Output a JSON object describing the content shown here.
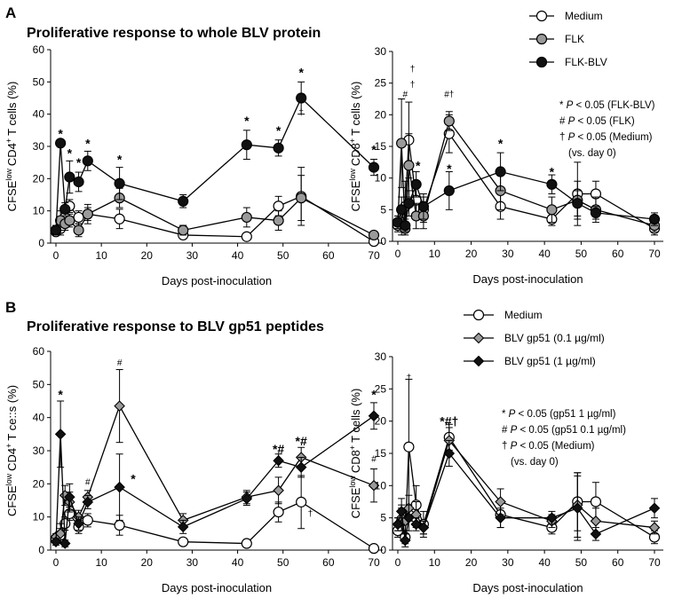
{
  "panels": [
    {
      "letter": "A",
      "title": "Proliferative response to whole BLV protein"
    },
    {
      "letter": "B",
      "title": "Proliferative response to BLV gp51 peptides"
    }
  ],
  "legends": [
    {
      "items": [
        "Medium",
        "FLK",
        "FLK-BLV"
      ],
      "notes": [
        "* P < 0.05 (FLK-BLV)",
        "# P < 0.05 (FLK)",
        "† P < 0.05 (Medium)",
        "(vs. day 0)"
      ]
    },
    {
      "items": [
        "Medium",
        "BLV gp51 (0.1 µg/ml)",
        "BLV gp51 (1 µg/ml)"
      ],
      "notes": [
        "* P < 0.05 (gp51 1 µg/ml)",
        "# P < 0.05 (gp51 0.1 µg/ml)",
        "† P < 0.05 (Medium)",
        "(vs. day 0)"
      ]
    }
  ],
  "chart_data": [
    {
      "type": "line",
      "id": "A-CD4",
      "xlabel": "Days post-inoculation",
      "ylabel": "CFSE low CD4+ T cells (%)",
      "xlim": [
        0,
        70
      ],
      "ylim": [
        0,
        60
      ],
      "xticks": [
        0,
        10,
        20,
        30,
        40,
        50,
        60,
        70
      ],
      "yticks": [
        0,
        10,
        20,
        30,
        40,
        50,
        60
      ],
      "x": [
        0,
        1,
        2,
        3,
        5,
        7,
        14,
        28,
        42,
        49,
        54,
        70
      ],
      "series": [
        {
          "name": "Medium",
          "marker": "circle-open",
          "values": [
            3.5,
            4.5,
            8,
            11.5,
            8,
            9,
            7.5,
            2.5,
            2,
            11.5,
            14.5,
            0.5
          ],
          "errors": [
            1,
            2,
            2,
            2,
            2,
            3,
            3,
            1,
            1,
            3,
            9,
            1
          ]
        },
        {
          "name": "FLK",
          "marker": "circle-gray",
          "values": [
            4,
            7,
            6,
            7,
            4,
            9,
            14,
            4,
            8,
            7,
            14,
            2.5
          ],
          "errors": [
            1,
            3,
            2,
            2,
            2,
            2,
            3,
            1.5,
            3,
            3,
            7,
            1
          ]
        },
        {
          "name": "FLK-BLV",
          "marker": "circle-filled",
          "values": [
            4,
            31,
            10.5,
            20.5,
            19,
            25.5,
            18.5,
            13,
            30.5,
            29.5,
            45,
            23.5
          ],
          "errors": [
            1.5,
            1,
            2,
            5,
            3,
            3,
            5,
            2,
            4.5,
            2.5,
            5,
            2.5
          ]
        }
      ],
      "annotations": [
        {
          "x": 1,
          "y": 34,
          "text": "*"
        },
        {
          "x": 3,
          "y": 28,
          "text": "*"
        },
        {
          "x": 5,
          "y": 25,
          "text": "*"
        },
        {
          "x": 7,
          "y": 31,
          "text": "*"
        },
        {
          "x": 14,
          "y": 26,
          "text": "*"
        },
        {
          "x": 42,
          "y": 38,
          "text": "*"
        },
        {
          "x": 49,
          "y": 35,
          "text": "*"
        },
        {
          "x": 54,
          "y": 53,
          "text": "*"
        },
        {
          "x": 54,
          "y": 41,
          "text": "†"
        },
        {
          "x": 70,
          "y": 29,
          "text": "*"
        }
      ]
    },
    {
      "type": "line",
      "id": "A-CD8",
      "xlabel": "Days post-inoculation",
      "ylabel": "CFSE low CD8+ T cells (%)",
      "xlim": [
        0,
        70
      ],
      "ylim": [
        0,
        30
      ],
      "xticks": [
        0,
        10,
        20,
        30,
        40,
        50,
        60,
        70
      ],
      "yticks": [
        0,
        5,
        10,
        15,
        20,
        25,
        30
      ],
      "x": [
        0,
        1,
        2,
        3,
        5,
        7,
        14,
        28,
        42,
        49,
        54,
        70
      ],
      "series": [
        {
          "name": "Medium",
          "marker": "circle-open",
          "values": [
            2.5,
            3,
            5.5,
            16,
            6.5,
            5,
            17,
            5.5,
            3.5,
            7.5,
            7.5,
            2
          ],
          "errors": [
            1,
            2,
            4,
            6,
            3,
            2,
            3,
            2,
            1,
            5,
            2,
            1
          ]
        },
        {
          "name": "FLK",
          "marker": "circle-gray",
          "values": [
            3,
            15.5,
            2,
            12,
            4,
            4,
            19,
            8,
            5,
            6.5,
            5,
            2.5
          ],
          "errors": [
            1,
            7,
            1,
            5,
            2,
            2,
            1.5,
            3,
            2,
            3,
            2,
            1
          ]
        },
        {
          "name": "FLK-BLV",
          "marker": "circle-filled",
          "values": [
            3,
            5,
            2.5,
            6,
            9,
            5.5,
            8,
            11,
            9,
            6,
            4.5,
            3.5
          ],
          "errors": [
            1,
            2,
            1,
            2,
            2,
            2,
            3,
            3,
            1.5,
            2,
            1,
            1
          ]
        }
      ],
      "annotations": [
        {
          "x": 2,
          "y": 23.5,
          "text": "#"
        },
        {
          "x": 4,
          "y": 27.5,
          "text": "†"
        },
        {
          "x": 4,
          "y": 25,
          "text": "†"
        },
        {
          "x": 5.5,
          "y": 12,
          "text": "*"
        },
        {
          "x": 14,
          "y": 23.5,
          "text": "#†"
        },
        {
          "x": 14,
          "y": 11.5,
          "text": "*"
        },
        {
          "x": 28,
          "y": 15.5,
          "text": "*"
        },
        {
          "x": 42,
          "y": 11,
          "text": "*"
        }
      ]
    },
    {
      "type": "line",
      "id": "B-CD4",
      "xlabel": "Days post-inoculation",
      "ylabel": "CFSE low CD4+ T ce::s (%)",
      "xlim": [
        0,
        70
      ],
      "ylim": [
        0,
        60
      ],
      "xticks": [
        0,
        10,
        20,
        30,
        40,
        50,
        60,
        70
      ],
      "yticks": [
        0,
        10,
        20,
        30,
        40,
        50,
        60
      ],
      "x": [
        0,
        1,
        2,
        3,
        5,
        7,
        14,
        28,
        42,
        49,
        54,
        70
      ],
      "series": [
        {
          "name": "Medium",
          "marker": "circle-open",
          "values": [
            3.5,
            4.5,
            8,
            11,
            7,
            9,
            7.5,
            2.5,
            2,
            11.5,
            14.5,
            0.5
          ],
          "errors": [
            1,
            2,
            2,
            2,
            2,
            2,
            3,
            1,
            1,
            3,
            8,
            1
          ]
        },
        {
          "name": "BLV gp51 (0.1 µg/ml)",
          "marker": "diamond-gray",
          "values": [
            4,
            5,
            16.5,
            14.5,
            10,
            16,
            43.5,
            9,
            16,
            18,
            28,
            19.5
          ],
          "errors": [
            1,
            3,
            3,
            3,
            2,
            2,
            11,
            2,
            2,
            4,
            3,
            5
          ]
        },
        {
          "name": "BLV gp51 (1 µg/ml)",
          "marker": "diamond-filled",
          "values": [
            2.5,
            35,
            2,
            16,
            8,
            14.5,
            19,
            7,
            15.5,
            27,
            25,
            40.5
          ],
          "errors": [
            1,
            10,
            1,
            4,
            2,
            2,
            10,
            2,
            2,
            2,
            3,
            4
          ]
        }
      ],
      "annotations": [
        {
          "x": 1,
          "y": 47,
          "text": "*"
        },
        {
          "x": 7,
          "y": 21,
          "text": "#"
        },
        {
          "x": 14,
          "y": 57,
          "text": "#"
        },
        {
          "x": 17,
          "y": 21.5,
          "text": "*"
        },
        {
          "x": 49,
          "y": 30.5,
          "text": "*#"
        },
        {
          "x": 54,
          "y": 33,
          "text": "*#"
        },
        {
          "x": 56,
          "y": 11.5,
          "text": "†"
        },
        {
          "x": 70,
          "y": 47,
          "text": "*"
        },
        {
          "x": 70,
          "y": 28,
          "text": "#"
        }
      ]
    },
    {
      "type": "line",
      "id": "B-CD8",
      "xlabel": "Days post-inoculation",
      "ylabel": "CFSE low CD8+ T cells (%)",
      "xlim": [
        0,
        70
      ],
      "ylim": [
        0,
        30
      ],
      "xticks": [
        0,
        10,
        20,
        30,
        40,
        50,
        60,
        70
      ],
      "yticks": [
        0,
        5,
        10,
        15,
        20,
        25,
        30
      ],
      "x": [
        0,
        1,
        2,
        3,
        5,
        7,
        14,
        28,
        42,
        49,
        54,
        70
      ],
      "series": [
        {
          "name": "Medium",
          "marker": "circle-open",
          "values": [
            3,
            4.5,
            2,
            16,
            7,
            4,
            17.5,
            5.5,
            3.5,
            7.5,
            7.5,
            2
          ],
          "errors": [
            1,
            2,
            1,
            10.5,
            3,
            2,
            2,
            2,
            1,
            4.5,
            3,
            1
          ]
        },
        {
          "name": "BLV gp51 (0.1 µg/ml)",
          "marker": "diamond-gray",
          "values": [
            4,
            5,
            4.5,
            6.5,
            5.5,
            3.5,
            17,
            7.5,
            4.5,
            7,
            4.5,
            3.5
          ],
          "errors": [
            1,
            2,
            2,
            2,
            2,
            1,
            2,
            2,
            1,
            5,
            2,
            1
          ]
        },
        {
          "name": "BLV gp51 (1 µg/ml)",
          "marker": "diamond-filled",
          "values": [
            4,
            6,
            1.5,
            5,
            4,
            3.5,
            15,
            5,
            5,
            6.5,
            2.5,
            6.5
          ],
          "errors": [
            1,
            2,
            1,
            2,
            1,
            1,
            2,
            1.5,
            1,
            5,
            1,
            1.5
          ]
        }
      ],
      "annotations": [
        {
          "x": 3,
          "y": 27,
          "text": "†"
        },
        {
          "x": 14,
          "y": 20,
          "text": "*#†"
        }
      ]
    }
  ]
}
